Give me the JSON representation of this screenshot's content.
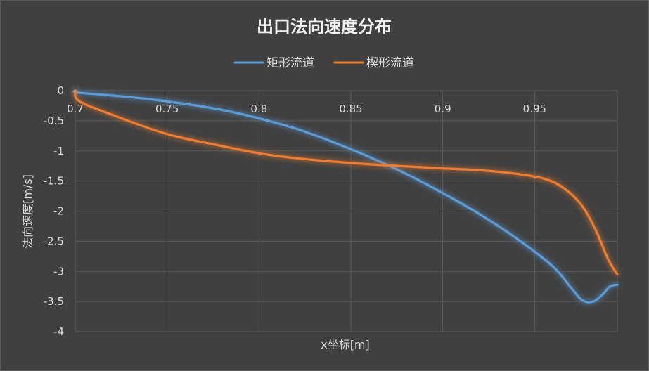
{
  "chart_data": {
    "type": "line",
    "title": "出口法向速度分布",
    "xlabel": "x坐标[m]",
    "ylabel": "法向速度[m/s]",
    "xlim": [
      0.7,
      0.995
    ],
    "ylim": [
      -4,
      0
    ],
    "x_ticks": [
      "0.7",
      "0.75",
      "0.8",
      "0.85",
      "0.9",
      "0.95"
    ],
    "y_ticks": [
      "0",
      "-0.5",
      "-1",
      "-1.5",
      "-2",
      "-2.5",
      "-3",
      "-3.5",
      "-4"
    ],
    "grid": true,
    "legend_position": "top-center",
    "series": [
      {
        "name": "矩形流道",
        "color": "#5b9bd5",
        "points": [
          [
            0.7,
            0.0
          ],
          [
            0.701,
            -0.03
          ],
          [
            0.72,
            -0.08
          ],
          [
            0.74,
            -0.14
          ],
          [
            0.76,
            -0.22
          ],
          [
            0.78,
            -0.32
          ],
          [
            0.8,
            -0.46
          ],
          [
            0.82,
            -0.63
          ],
          [
            0.84,
            -0.85
          ],
          [
            0.86,
            -1.1
          ],
          [
            0.88,
            -1.38
          ],
          [
            0.9,
            -1.7
          ],
          [
            0.92,
            -2.05
          ],
          [
            0.94,
            -2.45
          ],
          [
            0.96,
            -2.92
          ],
          [
            0.97,
            -3.28
          ],
          [
            0.976,
            -3.48
          ],
          [
            0.982,
            -3.5
          ],
          [
            0.987,
            -3.38
          ],
          [
            0.991,
            -3.25
          ],
          [
            0.995,
            -3.22
          ]
        ]
      },
      {
        "name": "楔形流道",
        "color": "#ed7d31",
        "points": [
          [
            0.7,
            0.0
          ],
          [
            0.702,
            -0.17
          ],
          [
            0.72,
            -0.4
          ],
          [
            0.75,
            -0.72
          ],
          [
            0.78,
            -0.92
          ],
          [
            0.8,
            -1.04
          ],
          [
            0.82,
            -1.12
          ],
          [
            0.85,
            -1.2
          ],
          [
            0.87,
            -1.24
          ],
          [
            0.9,
            -1.29
          ],
          [
            0.92,
            -1.32
          ],
          [
            0.94,
            -1.38
          ],
          [
            0.955,
            -1.46
          ],
          [
            0.965,
            -1.6
          ],
          [
            0.975,
            -1.88
          ],
          [
            0.983,
            -2.3
          ],
          [
            0.99,
            -2.8
          ],
          [
            0.995,
            -3.05
          ]
        ]
      }
    ]
  }
}
